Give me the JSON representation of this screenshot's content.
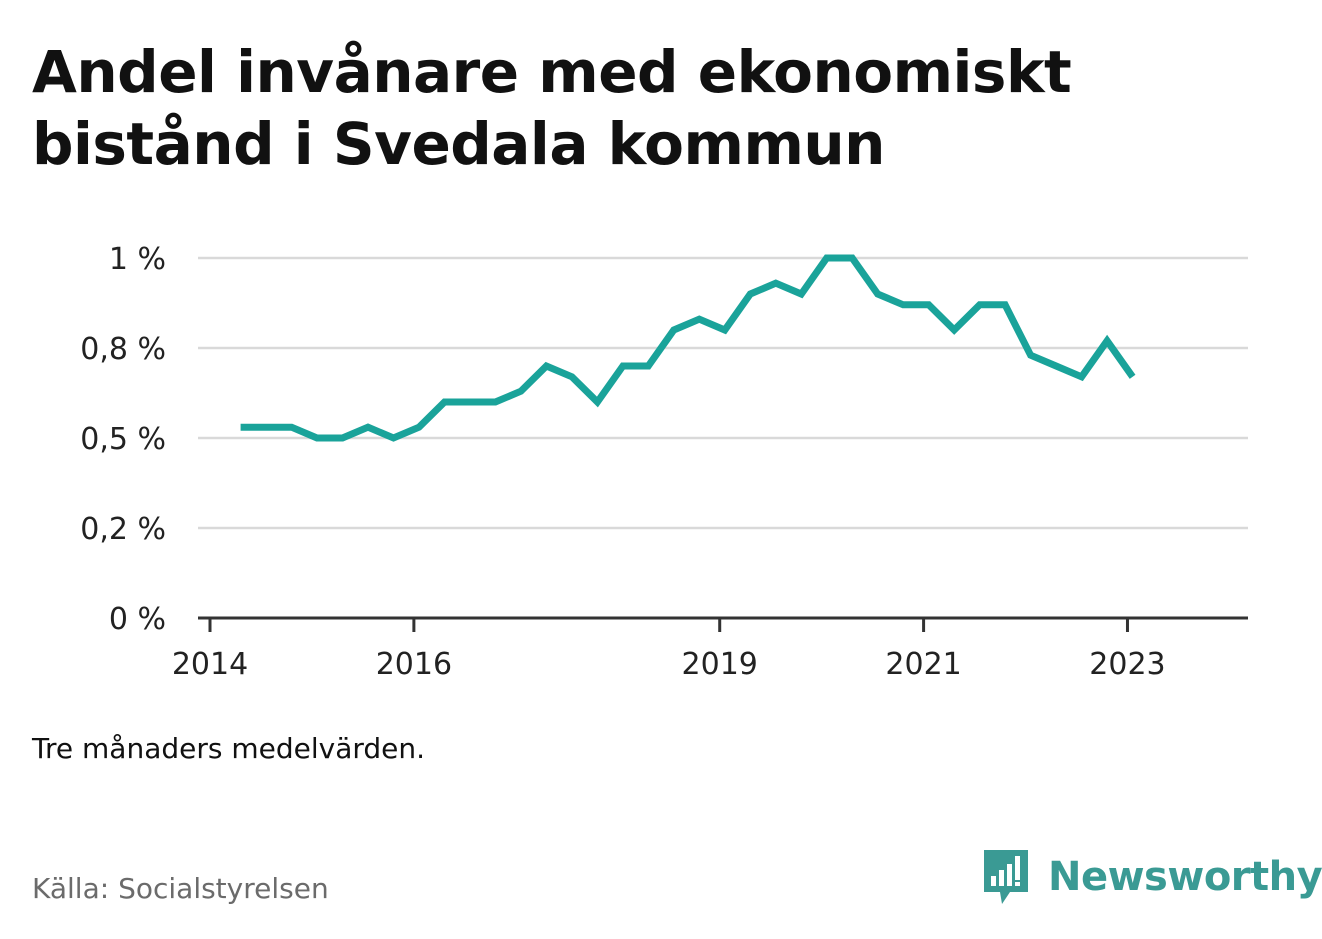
{
  "title": "Andel invånare med ekonomiskt bistånd i Svedala kommun",
  "note": "Tre månaders medelvärden.",
  "source": "Källa: Socialstyrelsen",
  "brand": {
    "name": "Newsworthy",
    "icon": "newsworthy-logo-icon",
    "color": "#3a9a94"
  },
  "colors": {
    "line": "#1aa39a",
    "grid": "#d9d9d9",
    "axis": "#333333"
  },
  "chart_data": {
    "type": "line",
    "title": "Andel invånare med ekonomiskt bistånd i Svedala kommun",
    "xlabel": "",
    "ylabel": "",
    "ylim": [
      0,
      1.0
    ],
    "yticks": [
      {
        "value": 0,
        "label": "0 %"
      },
      {
        "value": 0.25,
        "label": "0,2 %"
      },
      {
        "value": 0.5,
        "label": "0,5 %"
      },
      {
        "value": 0.75,
        "label": "0,8 %"
      },
      {
        "value": 1.0,
        "label": "1 %"
      }
    ],
    "xlim": [
      2014.0,
      2024.3
    ],
    "xticks": [
      {
        "value": 2014,
        "label": "2014"
      },
      {
        "value": 2016,
        "label": "2016"
      },
      {
        "value": 2019,
        "label": "2019"
      },
      {
        "value": 2021,
        "label": "2021"
      },
      {
        "value": 2023,
        "label": "2023"
      }
    ],
    "grid": true,
    "series": [
      {
        "x": [
          2014.3,
          2014.55,
          2014.8,
          2015.05,
          2015.3,
          2015.55,
          2015.8,
          2016.05,
          2016.3,
          2016.55,
          2016.8,
          2017.05,
          2017.3,
          2017.55,
          2017.8,
          2018.05,
          2018.3,
          2018.55,
          2018.8,
          2019.05,
          2019.3,
          2019.55,
          2019.8,
          2020.05,
          2020.3,
          2020.55,
          2020.8,
          2021.05,
          2021.3,
          2021.55,
          2021.8,
          2022.05,
          2022.3,
          2022.55,
          2022.8,
          2023.05
        ],
        "values": [
          0.53,
          0.53,
          0.53,
          0.5,
          0.5,
          0.53,
          0.5,
          0.53,
          0.6,
          0.6,
          0.6,
          0.63,
          0.7,
          0.67,
          0.6,
          0.7,
          0.7,
          0.8,
          0.83,
          0.8,
          0.9,
          0.93,
          0.9,
          1.0,
          1.0,
          0.9,
          0.87,
          0.87,
          0.8,
          0.87,
          0.87,
          0.73,
          0.7,
          0.67,
          0.77,
          0.67
        ]
      }
    ]
  }
}
